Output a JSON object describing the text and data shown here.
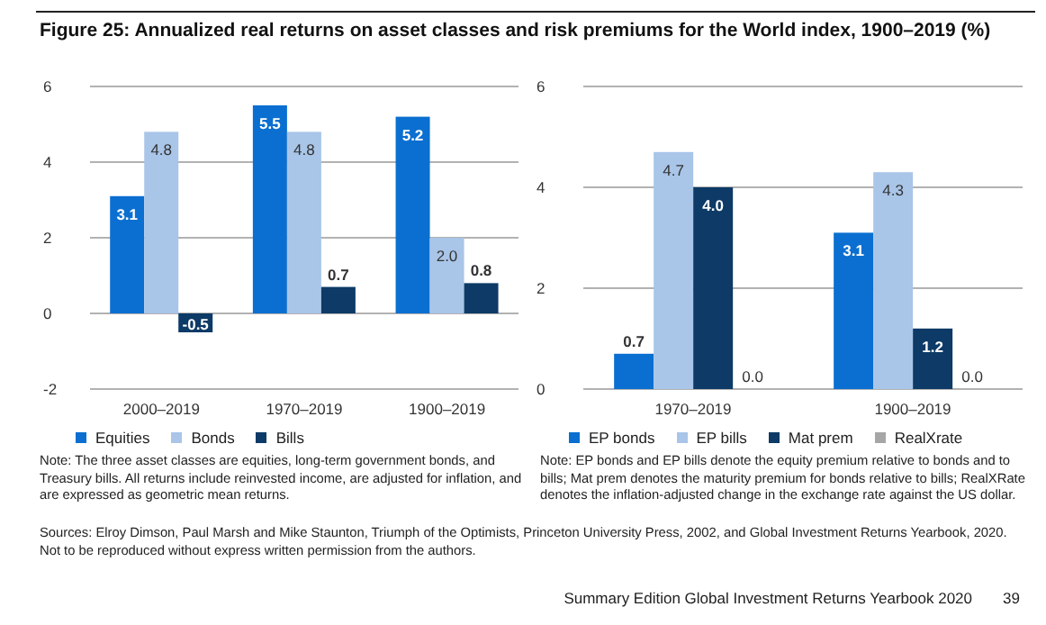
{
  "chart_data": [
    {
      "type": "bar",
      "title": "Figure 25: Annualized real returns on asset classes and risk premiums for the World index, 1900–2019 (%)",
      "categories": [
        "2000–2019",
        "1970–2019",
        "1900–2019"
      ],
      "series": [
        {
          "name": "Equities",
          "color": "#0a6fd0",
          "values": [
            3.1,
            5.5,
            5.2
          ]
        },
        {
          "name": "Bonds",
          "color": "#a9c5e8",
          "values": [
            4.8,
            4.8,
            2.0
          ]
        },
        {
          "name": "Bills",
          "color": "#0d3a66",
          "values": [
            -0.5,
            0.7,
            0.8
          ]
        }
      ],
      "value_labels": [
        [
          "3.1",
          "5.5",
          "5.2"
        ],
        [
          "4.8",
          "4.8",
          "2.0"
        ],
        [
          "-0.5",
          "0.7",
          "0.8"
        ]
      ],
      "ylim": [
        -2,
        6
      ],
      "yticks": [
        -2,
        0,
        2,
        4,
        6
      ],
      "grid": "y",
      "legend": "bottom",
      "annotations": [
        "Note:  The three asset classes are equities, long-term government bonds, and Treasury bills. All returns include reinvested income, are adjusted for inflation, and are expressed as geometric mean returns."
      ]
    },
    {
      "type": "bar",
      "categories": [
        "1970–2019",
        "1900–2019"
      ],
      "series": [
        {
          "name": "EP bonds",
          "color": "#0a6fd0",
          "values": [
            0.7,
            3.1
          ]
        },
        {
          "name": "EP bills",
          "color": "#a9c5e8",
          "values": [
            4.7,
            4.3
          ]
        },
        {
          "name": "Mat prem",
          "color": "#0d3a66",
          "values": [
            4.0,
            1.2
          ]
        },
        {
          "name": "RealXrate",
          "color": "#a6a6a6",
          "values": [
            0.0,
            0.0
          ]
        }
      ],
      "value_labels": [
        [
          "0.7",
          "3.1"
        ],
        [
          "4.7",
          "4.3"
        ],
        [
          "4.0",
          "1.2"
        ],
        [
          "0.0",
          "0.0"
        ]
      ],
      "ylim": [
        0,
        6
      ],
      "yticks": [
        0,
        2,
        4,
        6
      ],
      "grid": "y",
      "legend": "bottom",
      "annotations": [
        "Note: EP bonds and EP bills denote the equity premium relative to bonds and to bills; Mat prem denotes the maturity premium for bonds relative to bills; RealXRate denotes the inflation-adjusted change in the exchange rate against the US dollar.",
        "Sources: Elroy Dimson, Paul Marsh and Mike Staunton, Triumph of the Optimists, Princeton University Press, 2002, and Global Investment Returns Yearbook, 2020. Not to be reproduced without express written permission from the authors.",
        "Summary Edition Global Investment Returns Yearbook 2020",
        "39"
      ]
    }
  ]
}
